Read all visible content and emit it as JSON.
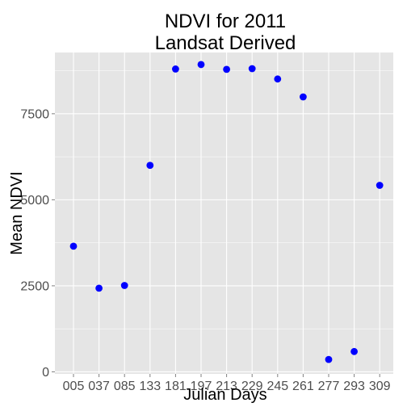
{
  "chart_data": {
    "type": "scatter",
    "title_line1": "NDVI for 2011",
    "title_line2": "Landsat Derived",
    "xlabel": "Julian Days",
    "ylabel": "Mean NDVI",
    "categories": [
      "005",
      "037",
      "085",
      "133",
      "181",
      "197",
      "213",
      "229",
      "245",
      "261",
      "277",
      "293",
      "309"
    ],
    "values": [
      3650,
      2430,
      2510,
      6000,
      8800,
      8930,
      8790,
      8810,
      8510,
      7990,
      360,
      590,
      5420
    ],
    "yticks": [
      0,
      2500,
      5000,
      7500
    ],
    "ytick_labels": [
      "0",
      "2500",
      "5000",
      "7500"
    ],
    "ylim": [
      -60,
      9280
    ],
    "grid": true,
    "point_color": "#0000ff",
    "panel_color": "#e5e5e5",
    "grid_color": "#ffffff"
  }
}
